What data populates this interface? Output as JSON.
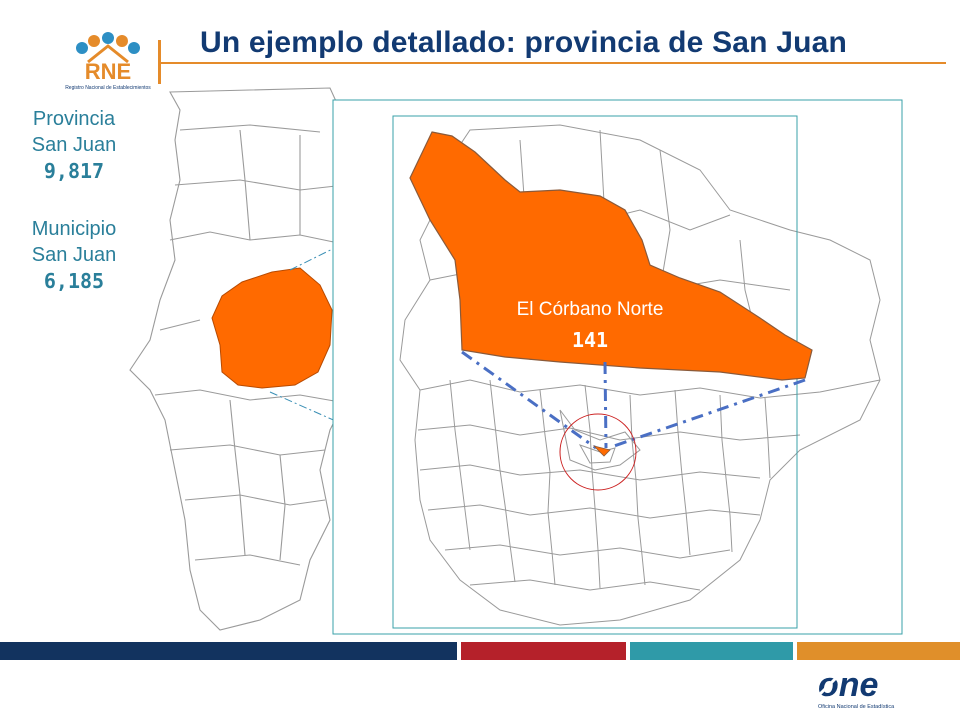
{
  "slide": {
    "title": "Un ejemplo detallado: provincia de San Juan",
    "rne_logo": {
      "text": "RNE",
      "subtitle": "Registro Nacional de Establecimientos"
    },
    "one_logo": {
      "text": "one",
      "subtitle": "Oficina Nacional de Estadística"
    },
    "provincia": {
      "label_line1": "Provincia",
      "label_line2": "San Juan",
      "value": "9,817"
    },
    "municipio": {
      "label_line1": "Municipio",
      "label_line2": "San Juan",
      "value": "6,185"
    },
    "zoom": {
      "name": "El Córbano Norte",
      "value": "141"
    }
  },
  "colors": {
    "title": "#123a72",
    "accent_orange": "#e58b2a",
    "highlight": "#ff6a00",
    "teal_text": "#2a7f9a",
    "bar_navy": "#12335f",
    "bar_red": "#b5212a",
    "bar_teal": "#2f9aa8",
    "bar_orange": "#e08f2a"
  }
}
